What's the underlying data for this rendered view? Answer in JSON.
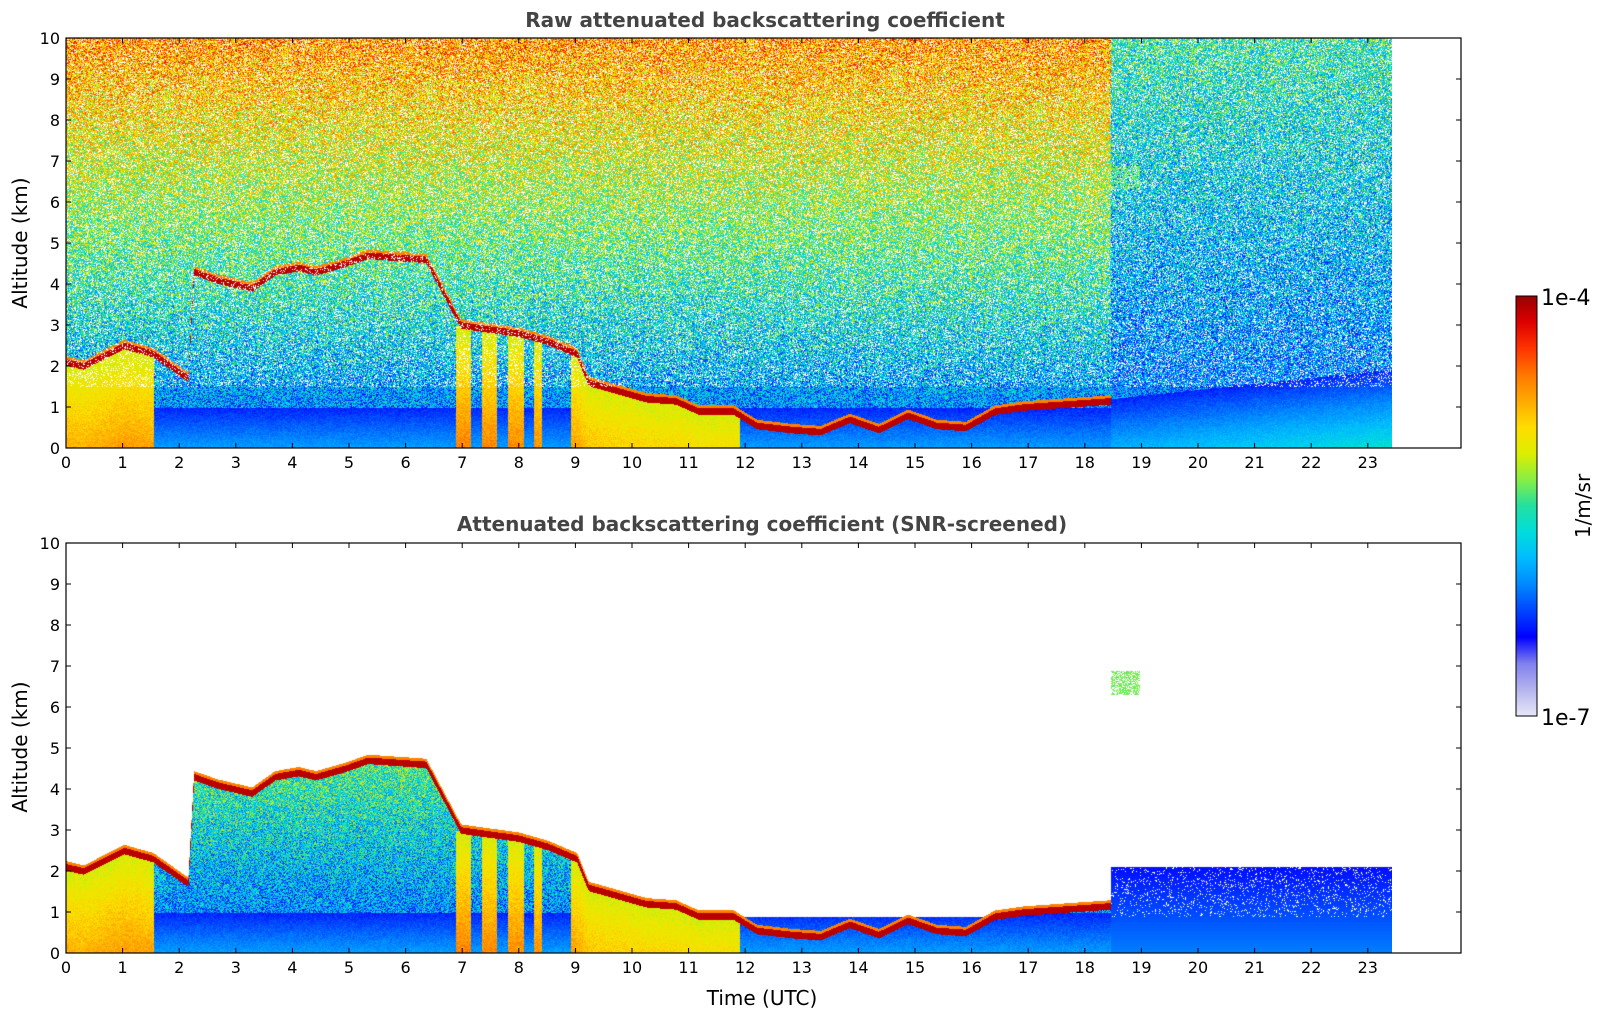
{
  "figure": {
    "colorbar": {
      "label": "1/m/sr",
      "max_label": "1e-4",
      "min_label": "1e-7",
      "scale": "log",
      "range": [
        1e-07,
        0.0001
      ],
      "colormap": [
        "#e8e8f8",
        "#b4b4ee",
        "#8080ee",
        "#0000ff",
        "#0044ff",
        "#0088ff",
        "#00bbff",
        "#00dddd",
        "#22e0a0",
        "#88ee44",
        "#ddee00",
        "#ffdd00",
        "#ffaa00",
        "#ff7700",
        "#ff3300",
        "#dd0000",
        "#990000"
      ]
    }
  },
  "chart_data": [
    {
      "type": "heatmap",
      "title": "Raw attenuated backscattering coefficient",
      "xlabel": "",
      "ylabel": "Altitude (km)",
      "xlim": [
        0,
        24
      ],
      "ylim": [
        0,
        10
      ],
      "x_ticks": [
        "0",
        "1",
        "2",
        "3",
        "4",
        "5",
        "6",
        "7",
        "8",
        "9",
        "10",
        "11",
        "12",
        "13",
        "14",
        "15",
        "16",
        "17",
        "18",
        "19",
        "20",
        "21",
        "22",
        "23"
      ],
      "y_ticks": [
        "0",
        "1",
        "2",
        "3",
        "4",
        "5",
        "6",
        "7",
        "8",
        "9",
        "10"
      ],
      "data_extent_hours": [
        0,
        22.85
      ],
      "screened": false,
      "cloud_layer": [
        [
          0,
          2.1
        ],
        [
          0.3,
          2.0
        ],
        [
          1.0,
          2.5
        ],
        [
          1.5,
          2.3
        ],
        [
          1.8,
          2.0
        ],
        [
          2.1,
          1.7
        ],
        [
          2.2,
          4.3
        ],
        [
          2.6,
          4.1
        ],
        [
          3.2,
          3.9
        ],
        [
          3.6,
          4.3
        ],
        [
          4.0,
          4.4
        ],
        [
          4.3,
          4.3
        ],
        [
          4.8,
          4.5
        ],
        [
          5.2,
          4.7
        ],
        [
          5.7,
          4.65
        ],
        [
          6.2,
          4.6
        ],
        [
          6.8,
          3.0
        ],
        [
          7.3,
          2.9
        ],
        [
          7.8,
          2.8
        ],
        [
          8.3,
          2.6
        ],
        [
          8.8,
          2.3
        ],
        [
          9.0,
          1.6
        ],
        [
          9.5,
          1.4
        ],
        [
          10.0,
          1.2
        ],
        [
          10.5,
          1.15
        ],
        [
          10.9,
          0.9
        ],
        [
          11.5,
          0.9
        ],
        [
          11.9,
          0.55
        ],
        [
          12.5,
          0.45
        ],
        [
          13.0,
          0.4
        ],
        [
          13.5,
          0.7
        ],
        [
          14.0,
          0.45
        ],
        [
          14.5,
          0.8
        ],
        [
          15.0,
          0.55
        ],
        [
          15.5,
          0.5
        ],
        [
          16.0,
          0.9
        ],
        [
          16.5,
          1.0
        ],
        [
          17.0,
          1.05
        ],
        [
          17.5,
          1.1
        ],
        [
          18.0,
          1.15
        ]
      ],
      "high_cloud": {
        "x": [
          18.0,
          18.5
        ],
        "altitude": [
          6.3,
          6.9
        ]
      }
    },
    {
      "type": "heatmap",
      "title": "Attenuated backscattering coefficient (SNR-screened)",
      "xlabel": "Time (UTC)",
      "ylabel": "Altitude (km)",
      "xlim": [
        0,
        24
      ],
      "ylim": [
        0,
        10
      ],
      "x_ticks": [
        "0",
        "1",
        "2",
        "3",
        "4",
        "5",
        "6",
        "7",
        "8",
        "9",
        "10",
        "11",
        "12",
        "13",
        "14",
        "15",
        "16",
        "17",
        "18",
        "19",
        "20",
        "21",
        "22",
        "23"
      ],
      "y_ticks": [
        "0",
        "1",
        "2",
        "3",
        "4",
        "5",
        "6",
        "7",
        "8",
        "9",
        "10"
      ],
      "data_extent_hours": [
        0,
        22.85
      ],
      "screened": true,
      "cloud_layer": [
        [
          0,
          2.1
        ],
        [
          0.3,
          2.0
        ],
        [
          1.0,
          2.5
        ],
        [
          1.5,
          2.3
        ],
        [
          1.8,
          2.0
        ],
        [
          2.1,
          1.7
        ],
        [
          2.2,
          4.3
        ],
        [
          2.6,
          4.1
        ],
        [
          3.2,
          3.9
        ],
        [
          3.6,
          4.3
        ],
        [
          4.0,
          4.4
        ],
        [
          4.3,
          4.3
        ],
        [
          4.8,
          4.5
        ],
        [
          5.2,
          4.7
        ],
        [
          5.7,
          4.65
        ],
        [
          6.2,
          4.6
        ],
        [
          6.8,
          3.0
        ],
        [
          7.3,
          2.9
        ],
        [
          7.8,
          2.8
        ],
        [
          8.3,
          2.6
        ],
        [
          8.8,
          2.3
        ],
        [
          9.0,
          1.6
        ],
        [
          9.5,
          1.4
        ],
        [
          10.0,
          1.2
        ],
        [
          10.5,
          1.15
        ],
        [
          10.9,
          0.9
        ],
        [
          11.5,
          0.9
        ],
        [
          11.9,
          0.55
        ],
        [
          12.5,
          0.45
        ],
        [
          13.0,
          0.4
        ],
        [
          13.5,
          0.7
        ],
        [
          14.0,
          0.45
        ],
        [
          14.5,
          0.8
        ],
        [
          15.0,
          0.55
        ],
        [
          15.5,
          0.5
        ],
        [
          16.0,
          0.9
        ],
        [
          16.5,
          1.0
        ],
        [
          17.0,
          1.05
        ],
        [
          17.5,
          1.1
        ],
        [
          18.0,
          1.15
        ]
      ],
      "high_cloud": {
        "x": [
          18.0,
          18.5
        ],
        "altitude": [
          6.3,
          6.9
        ]
      }
    }
  ]
}
